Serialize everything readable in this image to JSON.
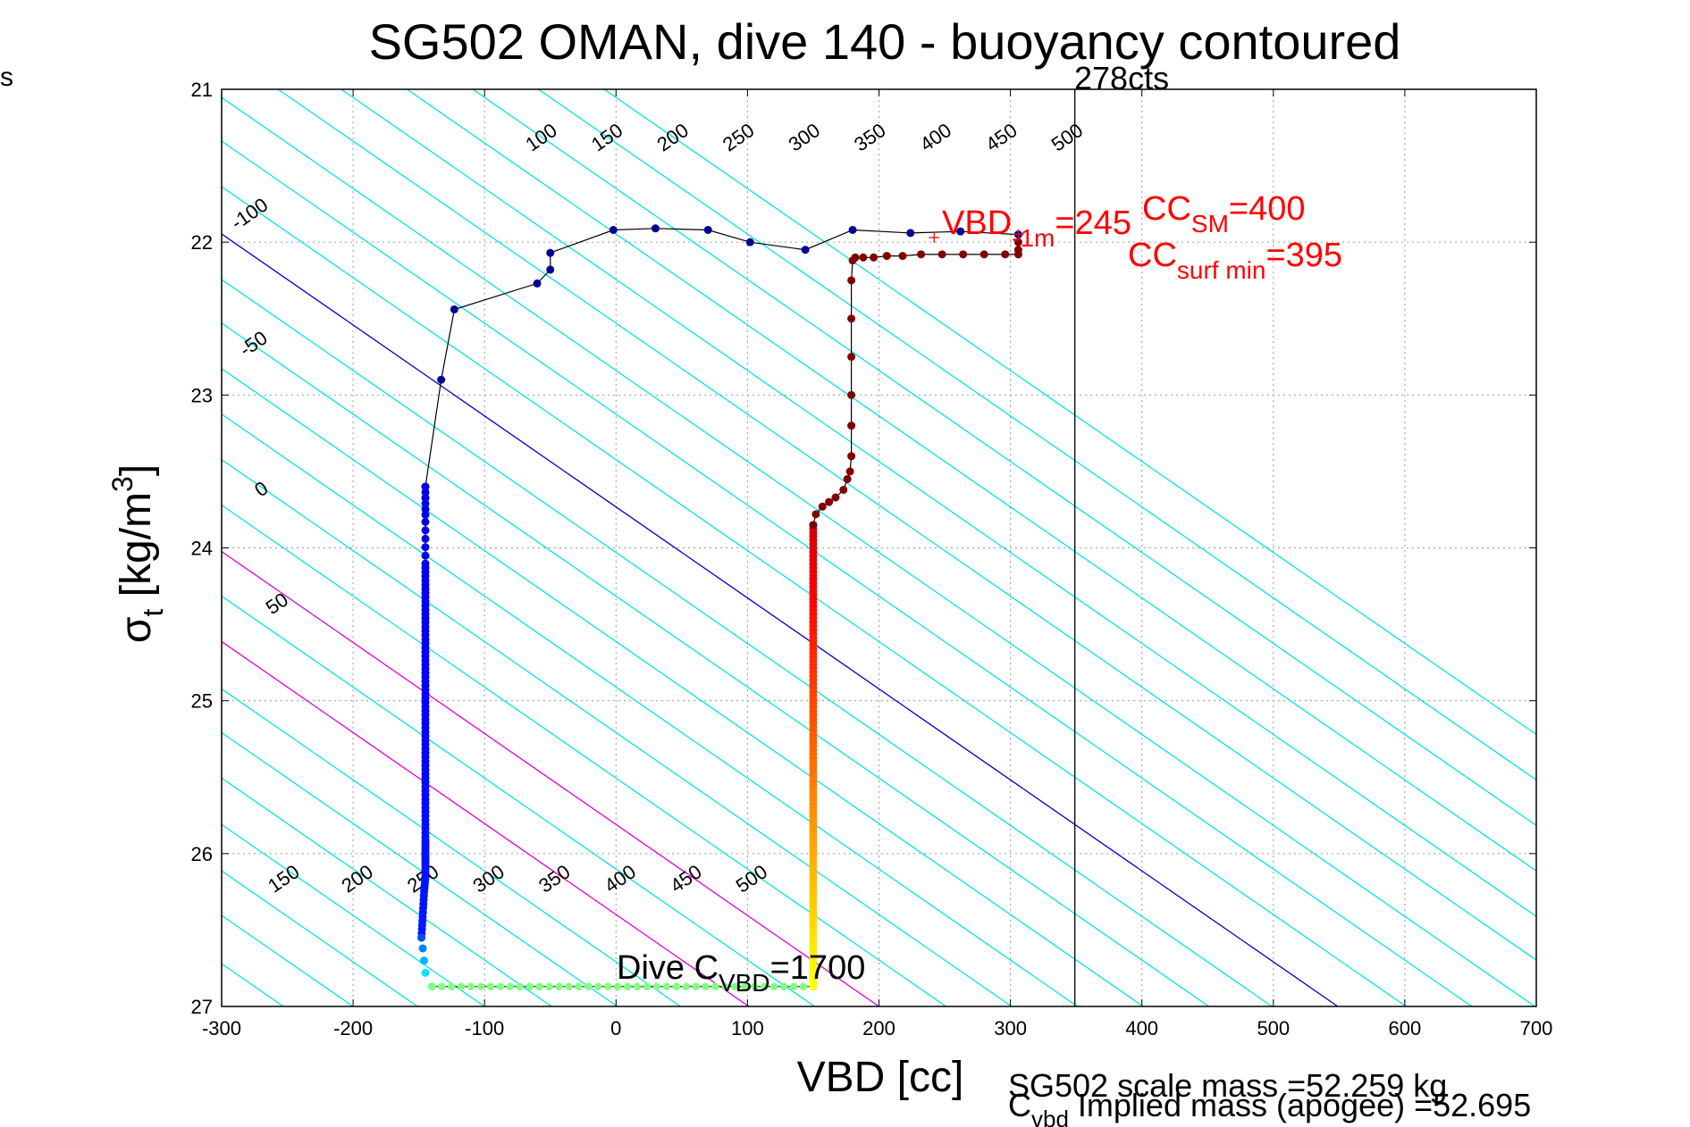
{
  "corner_text": "s",
  "chart_data": {
    "type": "scatter",
    "title": "SG502 OMAN, dive 140 - buoyancy contoured",
    "xlabel": "VBD [cc]",
    "ylabel_main": "σ",
    "ylabel_sub": "t",
    "ylabel_unit_pre": " [kg/m",
    "ylabel_unit_sup": "3",
    "ylabel_unit_post": "]",
    "xlim": [
      -300,
      700
    ],
    "ylim": [
      21,
      27
    ],
    "y_reversed": true,
    "grid": true,
    "x_ticks": [
      -300,
      -200,
      -100,
      0,
      100,
      200,
      300,
      400,
      500,
      600,
      700
    ],
    "y_ticks": [
      21,
      22,
      23,
      24,
      25,
      26,
      27
    ],
    "colors": {
      "contour": "#00e5e5",
      "contour_magenta": "#e000e0",
      "contour_blue": "#0000cc",
      "path_line": "#000000",
      "descent_dot": "#000090",
      "ascent_dot": "#800000",
      "annotation_red": "#ff0000",
      "vline": "#000000"
    },
    "contours": {
      "slope_vbd_per_sigma": 168,
      "vbd_at_sigma27": [
        -253,
        -200,
        -151,
        -100,
        -49,
        1,
        49,
        101,
        151,
        200,
        251,
        301,
        351,
        401,
        451,
        499,
        549,
        601,
        651,
        699,
        751,
        799,
        849,
        899,
        949,
        999
      ],
      "styles": [
        "c",
        "c",
        "c",
        "c",
        "c",
        "c",
        "c",
        "m",
        "c",
        "m",
        "c",
        "c",
        "c",
        "c",
        "c",
        "c",
        "b",
        "c",
        "c",
        "c",
        "c",
        "c",
        "c",
        "c",
        "c",
        "c"
      ]
    },
    "contour_labels_top": [
      {
        "text": "100",
        "vbd": -54,
        "sigma": 21.35
      },
      {
        "text": "150",
        "vbd": -4,
        "sigma": 21.35
      },
      {
        "text": "200",
        "vbd": 46,
        "sigma": 21.35
      },
      {
        "text": "250",
        "vbd": 96,
        "sigma": 21.35
      },
      {
        "text": "300",
        "vbd": 146,
        "sigma": 21.35
      },
      {
        "text": "350",
        "vbd": 196,
        "sigma": 21.35
      },
      {
        "text": "400",
        "vbd": 246,
        "sigma": 21.35
      },
      {
        "text": "450",
        "vbd": 296,
        "sigma": 21.35
      },
      {
        "text": "500",
        "vbd": 346,
        "sigma": 21.35
      }
    ],
    "contour_labels_left": [
      {
        "text": "-100",
        "vbd": -276,
        "sigma": 21.85
      },
      {
        "text": "-50",
        "vbd": -273,
        "sigma": 22.7
      },
      {
        "text": "0",
        "vbd": -267,
        "sigma": 23.65
      },
      {
        "text": "50",
        "vbd": -255,
        "sigma": 24.4
      }
    ],
    "contour_labels_bottom": [
      {
        "text": "150",
        "vbd": -250,
        "sigma": 26.2
      },
      {
        "text": "200",
        "vbd": -194,
        "sigma": 26.2
      },
      {
        "text": "250",
        "vbd": -144,
        "sigma": 26.2
      },
      {
        "text": "300",
        "vbd": -94,
        "sigma": 26.2
      },
      {
        "text": "350",
        "vbd": -44,
        "sigma": 26.2
      },
      {
        "text": "400",
        "vbd": 6,
        "sigma": 26.2
      },
      {
        "text": "450",
        "vbd": 56,
        "sigma": 26.2
      },
      {
        "text": "500",
        "vbd": 106,
        "sigma": 26.2
      }
    ],
    "top_path": {
      "vbd": [
        306,
        262,
        224,
        180,
        144,
        102,
        70,
        30,
        -2,
        -50,
        -50,
        -60,
        -123,
        -133,
        -145
      ],
      "sigma": [
        21.95,
        21.93,
        21.94,
        21.92,
        22.05,
        22.0,
        21.92,
        21.91,
        21.92,
        22.07,
        22.18,
        22.27,
        22.44,
        22.9,
        23.6
      ]
    },
    "descent_series": {
      "vbd": [
        -145,
        -145,
        -145,
        -145,
        -145,
        -145,
        -145,
        -145,
        -145,
        -145,
        -145,
        -145,
        -145,
        -145,
        -145,
        -145,
        -145,
        -145,
        -146,
        -147,
        -148
      ],
      "sigma": [
        23.6,
        23.8,
        24.1,
        24.25,
        24.4,
        24.55,
        24.7,
        24.85,
        25.0,
        25.15,
        25.3,
        25.45,
        25.6,
        25.75,
        25.9,
        26.0,
        26.05,
        26.15,
        26.25,
        26.4,
        26.55
      ]
    },
    "bottom_curve": {
      "vbd": [
        -148,
        -147,
        -146,
        -145,
        -140
      ],
      "sigma": [
        26.55,
        26.62,
        26.7,
        26.78,
        26.87
      ]
    },
    "bottom_series": {
      "vbd_start": -140,
      "vbd_end": 150,
      "sigma": 26.87,
      "count": 40
    },
    "ascent_column": {
      "vbd": 150,
      "sigma_start": 26.87,
      "sigma_end": 23.85
    },
    "upper_ascent": {
      "vbd": [
        150,
        152,
        157,
        162,
        167,
        173,
        176,
        178,
        179,
        179,
        179,
        179,
        179,
        179,
        180,
        182,
        188,
        196,
        206,
        218,
        232,
        248,
        264,
        280,
        296,
        306,
        306,
        306
      ],
      "sigma": [
        23.85,
        23.78,
        23.73,
        23.7,
        23.67,
        23.62,
        23.55,
        23.5,
        23.4,
        23.2,
        23.0,
        22.75,
        22.5,
        22.25,
        22.12,
        22.1,
        22.1,
        22.1,
        22.09,
        22.09,
        22.08,
        22.08,
        22.08,
        22.08,
        22.08,
        22.08,
        22.05,
        22.0
      ]
    },
    "vertical_line_vbd": 349,
    "annotations": {
      "cts": "278cts",
      "vbd_1m_pre": "VBD",
      "vbd_1m_sub": "-1m",
      "vbd_1m_post": "=245",
      "cc_sm_pre": "CC",
      "cc_sm_sub": "SM",
      "cc_sm_post": "=400",
      "cc_surf_pre": "CC",
      "cc_surf_sub": "surf min",
      "cc_surf_post": "=395",
      "dive_c_pre": "Dive C",
      "dive_c_sub": "VBD",
      "dive_c_post": "=1700",
      "scale_mass": "SG502 scale mass =52.259 kg",
      "cvbd_pre": "C",
      "cvbd_sub": "vbd",
      "cvbd_post": " Implied mass (apogee) =52.695"
    }
  }
}
